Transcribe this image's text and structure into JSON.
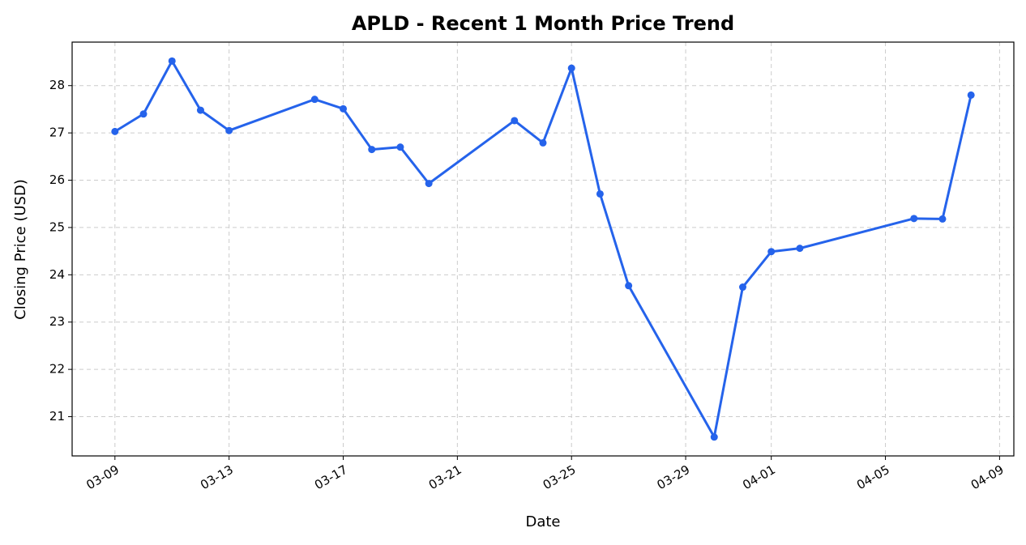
{
  "chart_data": {
    "type": "line",
    "title": "APLD - Recent 1 Month Price Trend",
    "x_label": "Date",
    "y_label": "Closing Price (USD)",
    "x": [
      "03-09",
      "03-10",
      "03-11",
      "03-12",
      "03-13",
      "03-16",
      "03-17",
      "03-18",
      "03-19",
      "03-20",
      "03-23",
      "03-24",
      "03-25",
      "03-26",
      "03-27",
      "03-30",
      "03-31",
      "04-01",
      "04-02",
      "04-06",
      "04-07",
      "04-08"
    ],
    "series": [
      {
        "name": "APLD",
        "color": "#2563eb",
        "values": [
          27.03,
          27.4,
          28.52,
          27.48,
          27.05,
          27.71,
          27.51,
          26.65,
          26.7,
          25.93,
          27.26,
          26.79,
          28.37,
          25.71,
          23.77,
          20.57,
          23.74,
          24.49,
          24.56,
          25.19,
          25.18,
          27.8
        ]
      }
    ],
    "xticks": [
      "03-09",
      "03-13",
      "03-17",
      "03-21",
      "03-25",
      "03-29",
      "04-01",
      "04-05",
      "04-09"
    ],
    "ylim": [
      20.17,
      28.92
    ],
    "yticks": [
      21,
      22,
      23,
      24,
      25,
      26,
      27,
      28
    ],
    "grid": true
  }
}
